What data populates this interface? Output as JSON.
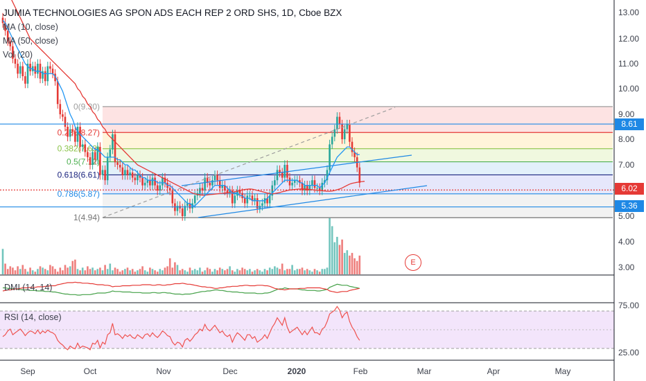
{
  "title": "JUMIA TECHNOLOGIES AG SPON ADS EACH REP 2 ORD SHS, 1D, Cboe BZX",
  "indicators": [
    "MA (10, close)",
    "MA (50, close)",
    "Vol (20)"
  ],
  "dmi_label": "DMI (14, 14)",
  "rsi_label": "RSI (14, close)",
  "earnings_marker": "E",
  "colors": {
    "up": "#26a69a",
    "down": "#e53935",
    "ma10": "#2196f3",
    "ma50": "#e53935",
    "fib_red": "#e53935",
    "fib_blue": "#1e88e5",
    "rsi": "#ef5350",
    "dmi_plus": "#43a047",
    "dmi_minus": "#e53935",
    "rsi_bg": "#f3e5fb"
  },
  "price_tags": [
    {
      "value": "8.61",
      "color": "#1e88e5"
    },
    {
      "value": "6.02",
      "color": "#e53935"
    },
    {
      "value": "5.36",
      "color": "#1e88e5"
    }
  ],
  "chart_data": [
    {
      "type": "line",
      "title": "JUMIA TECHNOLOGIES AG SPON ADS EACH REP 2 ORD SHS, 1D, Cboe BZX",
      "price_axis_ticks": [
        "13.00",
        "12.00",
        "11.00",
        "10.00",
        "9.00",
        "8.00",
        "7.00",
        "6.00",
        "5.00",
        "4.00",
        "3.00"
      ],
      "time_axis_ticks": [
        "Sep",
        "Oct",
        "Nov",
        "Dec",
        "2020",
        "Feb",
        "Mar",
        "Apr",
        "May"
      ],
      "ylim": [
        2.8,
        13.3
      ],
      "fibonacci": [
        {
          "level": "0(9.30)",
          "price": 9.3,
          "color": "#9e9e9e"
        },
        {
          "level": "0.236(8.27)",
          "price": 8.27,
          "color": "#e53935"
        },
        {
          "level": "0.382(7.63)",
          "price": 7.63,
          "color": "#8bc34a"
        },
        {
          "level": "0.5(7.12)",
          "price": 7.12,
          "color": "#4caf50"
        },
        {
          "level": "0.618(6.61)",
          "price": 6.61,
          "color": "#1a237e"
        },
        {
          "level": "0.786(5.87)",
          "price": 5.87,
          "color": "#1e88e5"
        },
        {
          "level": "1(4.94)",
          "price": 4.94,
          "color": "#757575"
        }
      ],
      "horizontal_lines": [
        {
          "price": 8.61,
          "color": "#1e88e5"
        },
        {
          "price": 6.02,
          "color": "#e53935",
          "style": "dotted"
        },
        {
          "price": 5.36,
          "color": "#1e88e5"
        }
      ],
      "price_close": [
        12.6,
        12.3,
        11.9,
        11.7,
        11.2,
        11.0,
        10.6,
        10.9,
        10.5,
        10.2,
        11.0,
        10.7,
        10.9,
        10.6,
        11.0,
        10.4,
        10.7,
        10.3,
        10.9,
        10.8,
        10.6,
        10.3,
        9.4,
        9.0,
        8.9,
        8.5,
        8.1,
        8.4,
        8.3,
        7.9,
        8.5,
        7.7,
        7.8,
        7.5,
        7.3,
        7.0,
        7.5,
        7.2,
        7.7,
        6.6,
        6.8,
        6.4,
        7.3,
        7.6,
        8.2,
        7.1,
        7.0,
        6.9,
        6.6,
        6.8,
        6.6,
        6.7,
        6.5,
        6.4,
        6.6,
        6.5,
        6.2,
        6.3,
        6.4,
        6.2,
        6.5,
        6.2,
        6.0,
        6.2,
        6.5,
        6.3,
        6.1,
        6.0,
        5.5,
        5.2,
        5.4,
        5.3,
        5.0,
        5.4,
        5.5,
        5.3,
        5.5,
        5.8,
        5.9,
        6.1,
        6.0,
        6.5,
        6.3,
        6.2,
        6.4,
        6.6,
        6.4,
        6.1,
        6.2,
        6.0,
        5.9,
        6.0,
        5.5,
        5.8,
        6.0,
        5.9,
        5.7,
        5.5,
        5.8,
        5.8,
        5.6,
        5.7,
        5.3,
        5.4,
        5.5,
        5.7,
        5.5,
        5.8,
        6.2,
        6.4,
        6.8,
        6.7,
        6.5,
        7.0,
        6.5,
        6.2,
        6.3,
        6.4,
        6.4,
        6.3,
        6.0,
        6.2,
        6.0,
        6.2,
        6.4,
        6.1,
        6.1,
        6.0,
        6.3,
        6.4,
        6.8,
        7.8,
        8.1,
        8.4,
        8.9,
        8.6,
        8.0,
        8.4,
        8.6,
        7.9,
        7.5,
        7.3,
        6.9,
        6.3
      ],
      "ma10": [
        12.7,
        12.6,
        12.4,
        12.2,
        12.0,
        11.8,
        11.6,
        11.4,
        11.2,
        11.0,
        10.9,
        10.8,
        10.8,
        10.7,
        10.7,
        10.7,
        10.6,
        10.6,
        10.6,
        10.6,
        10.6,
        10.5,
        10.3,
        10.1,
        9.9,
        9.6,
        9.3,
        9.0,
        8.8,
        8.5,
        8.3,
        8.2,
        8.1,
        8.0,
        7.9,
        7.8,
        7.7,
        7.6,
        7.6,
        7.5,
        7.4,
        7.3,
        7.3,
        7.3,
        7.3,
        7.3,
        7.2,
        7.2,
        7.1,
        7.0,
        7.0,
        6.9,
        6.8,
        6.8,
        6.7,
        6.6,
        6.5,
        6.5,
        6.4,
        6.4,
        6.4,
        6.4,
        6.3,
        6.3,
        6.3,
        6.3,
        6.2,
        6.2,
        6.1,
        6.0,
        5.9,
        5.8,
        5.7,
        5.6,
        5.5,
        5.5,
        5.4,
        5.4,
        5.5,
        5.6,
        5.7,
        5.8,
        5.9,
        6.0,
        6.1,
        6.2,
        6.2,
        6.2,
        6.2,
        6.2,
        6.1,
        6.0,
        5.9,
        5.9,
        5.9,
        5.8,
        5.8,
        5.7,
        5.7,
        5.7,
        5.6,
        5.6,
        5.6,
        5.6,
        5.6,
        5.6,
        5.7,
        5.8,
        5.9,
        6.0,
        6.1,
        6.2,
        6.3,
        6.4,
        6.4,
        6.4,
        6.4,
        6.4,
        6.4,
        6.3,
        6.3,
        6.2,
        6.2,
        6.2,
        6.2,
        6.2,
        6.2,
        6.1,
        6.2,
        6.3,
        6.5,
        6.7,
        6.9,
        7.1,
        7.3,
        7.4,
        7.5,
        7.6,
        7.7,
        7.7,
        7.6,
        7.5,
        7.4,
        7.4
      ],
      "ma50": [
        14.2,
        14.0,
        13.8,
        13.6,
        13.4,
        13.2,
        13.0,
        12.8,
        12.6,
        12.4,
        12.2,
        12.0,
        11.9,
        11.8,
        11.7,
        11.6,
        11.5,
        11.4,
        11.3,
        11.2,
        11.1,
        11.0,
        10.9,
        10.8,
        10.7,
        10.6,
        10.5,
        10.4,
        10.3,
        10.2,
        10.0,
        9.9,
        9.7,
        9.6,
        9.4,
        9.3,
        9.1,
        9.0,
        8.8,
        8.7,
        8.5,
        8.4,
        8.2,
        8.1,
        8.0,
        7.9,
        7.8,
        7.7,
        7.6,
        7.5,
        7.4,
        7.3,
        7.2,
        7.1,
        7.0,
        6.95,
        6.9,
        6.85,
        6.8,
        6.75,
        6.7,
        6.65,
        6.6,
        6.55,
        6.5,
        6.45,
        6.4,
        6.35,
        6.3,
        6.25,
        6.2,
        6.15,
        6.1,
        6.05,
        6.0,
        5.95,
        5.9,
        5.87,
        5.85,
        5.83,
        5.82,
        5.82,
        5.83,
        5.84,
        5.85,
        5.86,
        5.87,
        5.88,
        5.89,
        5.9,
        5.91,
        5.92,
        5.93,
        5.95,
        5.97,
        6.0,
        6.02,
        6.04,
        6.05,
        6.06,
        6.05,
        6.03,
        6.0,
        5.98,
        5.95,
        5.93,
        5.9,
        5.88,
        5.87,
        5.88,
        5.9,
        5.92,
        5.95,
        5.97,
        6.0,
        6.02,
        6.03,
        6.04,
        6.05,
        6.06,
        6.06,
        6.06,
        6.05,
        6.04,
        6.03,
        6.02,
        6.01,
        6.0,
        5.99,
        5.98,
        5.97,
        5.97,
        5.98,
        6.0,
        6.03,
        6.06,
        6.1,
        6.15,
        6.2,
        6.25,
        6.28,
        6.3,
        6.32,
        6.34,
        6.35,
        6.36
      ],
      "volume": [
        0.95,
        0.4,
        0.2,
        0.3,
        0.25,
        0.15,
        0.3,
        0.2,
        0.35,
        0.2,
        0.1,
        0.25,
        0.15,
        0.1,
        0.2,
        0.3,
        0.25,
        0.2,
        0.15,
        0.35,
        0.3,
        0.2,
        0.1,
        0.25,
        0.15,
        0.35,
        0.25,
        0.3,
        0.5,
        0.55,
        0.2,
        0.15,
        0.25,
        0.15,
        0.3,
        0.2,
        0.25,
        0.15,
        0.2,
        0.25,
        0.15,
        0.35,
        0.2,
        0.4,
        0.15,
        0.25,
        0.2,
        0.1,
        0.15,
        0.2,
        0.25,
        0.15,
        0.2,
        0.1,
        0.15,
        0.2,
        0.3,
        0.15,
        0.1,
        0.25,
        0.2,
        0.15,
        0.1,
        0.2,
        0.15,
        0.25,
        0.3,
        0.6,
        0.25,
        0.45,
        0.35,
        0.15,
        0.2,
        0.15,
        0.1,
        0.25,
        0.15,
        0.2,
        0.15,
        0.25,
        0.1,
        0.15,
        0.25,
        0.2,
        0.1,
        0.2,
        0.15,
        0.25,
        0.2,
        0.15,
        0.2,
        0.3,
        0.15,
        0.1,
        0.2,
        0.15,
        0.25,
        0.2,
        0.15,
        0.2,
        0.1,
        0.15,
        0.2,
        0.15,
        0.1,
        0.2,
        0.15,
        0.25,
        0.2,
        0.3,
        0.25,
        0.2,
        0.4,
        0.15,
        0.2,
        0.2,
        0.35,
        0.15,
        0.2,
        0.2,
        0.25,
        0.15,
        0.2,
        0.15,
        0.1,
        0.2,
        0.15,
        0.1,
        0.2,
        0.2,
        0.25,
        2.1,
        1.8,
        1.2,
        1.4,
        1.1,
        1.3,
        0.8,
        0.9,
        0.7,
        0.8,
        0.6,
        0.5,
        0.7
      ],
      "rsi": [
        42,
        44,
        48,
        50,
        44,
        46,
        48,
        50,
        47,
        43,
        46,
        48,
        47,
        45,
        49,
        45,
        48,
        46,
        49,
        47,
        46,
        44,
        38,
        35,
        33,
        30,
        28,
        32,
        30,
        29,
        35,
        30,
        32,
        31,
        30,
        28,
        35,
        34,
        38,
        30,
        36,
        34,
        44,
        46,
        56,
        44,
        45,
        43,
        40,
        44,
        42,
        44,
        41,
        40,
        44,
        42,
        40,
        44,
        45,
        42,
        46,
        43,
        41,
        44,
        48,
        46,
        43,
        42,
        36,
        33,
        36,
        35,
        31,
        38,
        40,
        37,
        40,
        44,
        46,
        50,
        48,
        55,
        50,
        48,
        51,
        54,
        50,
        46,
        48,
        44,
        42,
        44,
        36,
        42,
        46,
        44,
        41,
        38,
        44,
        44,
        40,
        42,
        36,
        38,
        40,
        44,
        40,
        46,
        52,
        56,
        62,
        58,
        54,
        62,
        52,
        46,
        48,
        50,
        52,
        48,
        44,
        48,
        44,
        48,
        52,
        46,
        46,
        44,
        50,
        52,
        58,
        66,
        68,
        70,
        74,
        70,
        62,
        66,
        68,
        58,
        52,
        48,
        42,
        38
      ],
      "dmi_plus": [
        22,
        22,
        21,
        21,
        20,
        20,
        19,
        19,
        18,
        18,
        18,
        17,
        17,
        17,
        16,
        16,
        16,
        15,
        15,
        15,
        14,
        14,
        13,
        12,
        11,
        10,
        10,
        9,
        9,
        9,
        8,
        8,
        9,
        9,
        9,
        9,
        10,
        11,
        12,
        12,
        12,
        12,
        13,
        14,
        16,
        15,
        15,
        15,
        14,
        14,
        14,
        14,
        13,
        13,
        13,
        13,
        12,
        12,
        12,
        12,
        13,
        13,
        12,
        12,
        13,
        13,
        12,
        12,
        11,
        10,
        10,
        10,
        9,
        10,
        10,
        10,
        11,
        12,
        13,
        14,
        15,
        15,
        16,
        16,
        17,
        18,
        18,
        17,
        17,
        16,
        15,
        15,
        14,
        14,
        14,
        13,
        13,
        12,
        12,
        12,
        12,
        12,
        11,
        11,
        11,
        12,
        12,
        13,
        15,
        17,
        19,
        20,
        20,
        22,
        21,
        20,
        20,
        20,
        20,
        19,
        18,
        18,
        17,
        17,
        17,
        17,
        16,
        16,
        17,
        18,
        19,
        23,
        25,
        27,
        29,
        28,
        27,
        27,
        27,
        25,
        24,
        23,
        22,
        21
      ],
      "dmi_minus": [
        16,
        17,
        18,
        18,
        19,
        20,
        20,
        21,
        22,
        22,
        22,
        23,
        23,
        23,
        24,
        24,
        24,
        25,
        25,
        26,
        26,
        26,
        28,
        29,
        30,
        31,
        32,
        32,
        32,
        33,
        32,
        32,
        31,
        31,
        31,
        30,
        30,
        29,
        28,
        28,
        28,
        27,
        27,
        26,
        24,
        25,
        25,
        25,
        26,
        26,
        26,
        26,
        27,
        27,
        27,
        27,
        28,
        28,
        28,
        28,
        27,
        27,
        28,
        28,
        27,
        27,
        28,
        28,
        29,
        30,
        30,
        30,
        31,
        30,
        29,
        29,
        28,
        27,
        26,
        25,
        24,
        24,
        23,
        23,
        22,
        21,
        21,
        22,
        22,
        23,
        24,
        24,
        25,
        25,
        25,
        26,
        26,
        27,
        27,
        26,
        26,
        26,
        27,
        27,
        27,
        26,
        26,
        25,
        23,
        21,
        20,
        19,
        19,
        18,
        19,
        20,
        20,
        20,
        20,
        21,
        21,
        21,
        22,
        22,
        22,
        22,
        22,
        22,
        21,
        20,
        19,
        16,
        15,
        14,
        13,
        14,
        15,
        15,
        15,
        17,
        18,
        19,
        20,
        21
      ]
    }
  ]
}
